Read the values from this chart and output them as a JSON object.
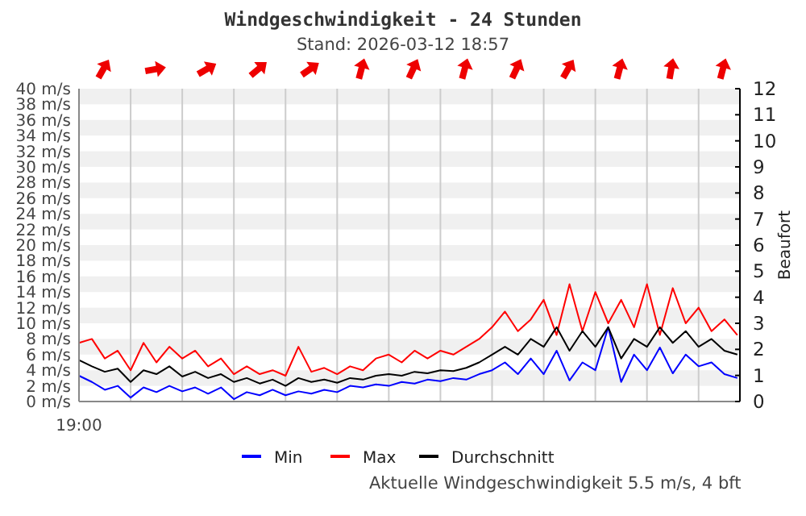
{
  "chart_data": {
    "type": "line",
    "title": "Windgeschwindigkeit - 24 Stunden",
    "subtitle": "Stand: 2026-03-12 18:57",
    "y2label": "Beaufort",
    "categories": [
      null,
      null,
      null,
      null,
      null,
      null,
      null,
      null,
      null,
      null,
      null,
      null,
      null,
      null,
      null,
      null,
      null,
      null,
      null,
      null,
      null,
      null,
      null,
      null,
      null,
      null,
      null,
      null,
      null,
      null,
      null,
      null,
      null,
      null,
      null,
      null,
      null,
      null,
      null,
      null,
      null,
      null,
      null,
      null,
      null,
      null,
      null,
      null,
      null,
      null,
      null,
      null
    ],
    "series": [
      {
        "name": "Min",
        "color": "#0000ff",
        "values": [
          3.3,
          2.5,
          1.5,
          2.0,
          0.5,
          1.8,
          1.2,
          2.0,
          1.3,
          1.8,
          1.0,
          1.8,
          0.3,
          1.2,
          0.8,
          1.5,
          0.8,
          1.3,
          1.0,
          1.5,
          1.2,
          2.0,
          1.8,
          2.2,
          2.0,
          2.5,
          2.3,
          2.8,
          2.6,
          3.0,
          2.8,
          3.5,
          4.0,
          5.0,
          3.5,
          5.5,
          3.5,
          6.5,
          2.7,
          5.0,
          4.0,
          9.5,
          2.5,
          6.0,
          4.0,
          6.9,
          3.6,
          6.0,
          4.5,
          5.0,
          3.5,
          3.0
        ]
      },
      {
        "name": "Max",
        "color": "#ff0000",
        "values": [
          7.5,
          8.0,
          5.5,
          6.5,
          4.0,
          7.5,
          5.0,
          7.0,
          5.5,
          6.5,
          4.5,
          5.5,
          3.5,
          4.5,
          3.5,
          4.0,
          3.3,
          7.0,
          3.8,
          4.3,
          3.5,
          4.5,
          4.0,
          5.5,
          6.0,
          5.0,
          6.5,
          5.5,
          6.5,
          6.0,
          7.0,
          8.0,
          9.5,
          11.5,
          9.0,
          10.5,
          13.0,
          8.5,
          15.0,
          9.0,
          14.0,
          10.0,
          13.0,
          9.5,
          15.0,
          8.5,
          14.5,
          10.0,
          12.0,
          9.0,
          10.5,
          8.5
        ]
      },
      {
        "name": "Durchschnitt",
        "color": "#000000",
        "values": [
          5.3,
          4.5,
          3.8,
          4.2,
          2.5,
          4.0,
          3.5,
          4.5,
          3.2,
          3.8,
          3.0,
          3.5,
          2.5,
          3.0,
          2.3,
          2.8,
          2.0,
          3.0,
          2.5,
          2.8,
          2.4,
          3.0,
          2.8,
          3.3,
          3.5,
          3.3,
          3.8,
          3.6,
          4.0,
          3.9,
          4.3,
          5.0,
          6.0,
          7.0,
          6.0,
          8.0,
          7.0,
          9.5,
          6.5,
          9.0,
          7.0,
          9.5,
          5.5,
          8.0,
          7.0,
          9.5,
          7.5,
          9.0,
          7.0,
          8.0,
          6.5,
          6.0
        ]
      }
    ],
    "ylim": [
      0,
      40
    ],
    "yticks": [
      {
        "value": 0,
        "label": "0 m/s"
      },
      {
        "value": 2,
        "label": "2 m/s"
      },
      {
        "value": 4,
        "label": "4 m/s"
      },
      {
        "value": 6,
        "label": "6 m/s"
      },
      {
        "value": 8,
        "label": "8 m/s"
      },
      {
        "value": 10,
        "label": "10 m/s"
      },
      {
        "value": 12,
        "label": "12 m/s"
      },
      {
        "value": 14,
        "label": "14 m/s"
      },
      {
        "value": 16,
        "label": "16 m/s"
      },
      {
        "value": 18,
        "label": "18 m/s"
      },
      {
        "value": 20,
        "label": "20 m/s"
      },
      {
        "value": 22,
        "label": "22 m/s"
      },
      {
        "value": 24,
        "label": "24 m/s"
      },
      {
        "value": 26,
        "label": "26 m/s"
      },
      {
        "value": 28,
        "label": "28 m/s"
      },
      {
        "value": 30,
        "label": "30 m/s"
      },
      {
        "value": 32,
        "label": "32 m/s"
      },
      {
        "value": 34,
        "label": "34 m/s"
      },
      {
        "value": 36,
        "label": "36 m/s"
      },
      {
        "value": 38,
        "label": "38 m/s"
      },
      {
        "value": 40,
        "label": "40 m/s"
      }
    ],
    "y2lim": [
      0,
      12
    ],
    "y2ticks": [
      0,
      1,
      2,
      3,
      4,
      5,
      6,
      7,
      8,
      9,
      10,
      11,
      12
    ],
    "grid": true,
    "legend": "bottom",
    "marker": "none",
    "line_style": "solid",
    "annotations": [
      "19:00",
      "Aktuelle Windgeschwindigkeit 5.5 m/s, 4 bft"
    ]
  }
}
